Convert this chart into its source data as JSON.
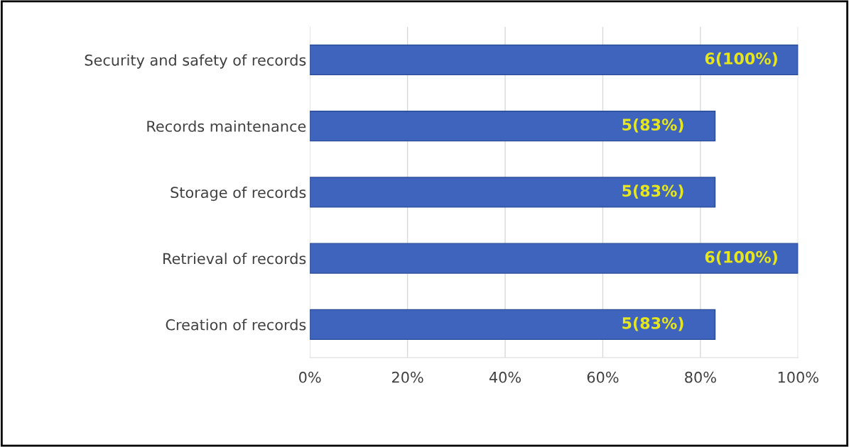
{
  "chart_data": {
    "type": "bar",
    "orientation": "horizontal",
    "categories": [
      "Security and safety of records",
      "Records maintenance",
      "Storage of records",
      "Retrieval of records",
      "Creation of records"
    ],
    "values": [
      100,
      83,
      83,
      100,
      83
    ],
    "value_labels": [
      "6(100%)",
      "5(83%)",
      "5(83%)",
      "6(100%)",
      "5(83%)"
    ],
    "color": "#3f64be",
    "xlim": [
      0,
      100
    ],
    "xticks": [
      {
        "value": 0,
        "label": "0%"
      },
      {
        "value": 20,
        "label": "20%"
      },
      {
        "value": 40,
        "label": "40%"
      },
      {
        "value": 60,
        "label": "60%"
      },
      {
        "value": 80,
        "label": "80%"
      },
      {
        "value": 100,
        "label": "100%"
      }
    ],
    "grid": "x"
  }
}
